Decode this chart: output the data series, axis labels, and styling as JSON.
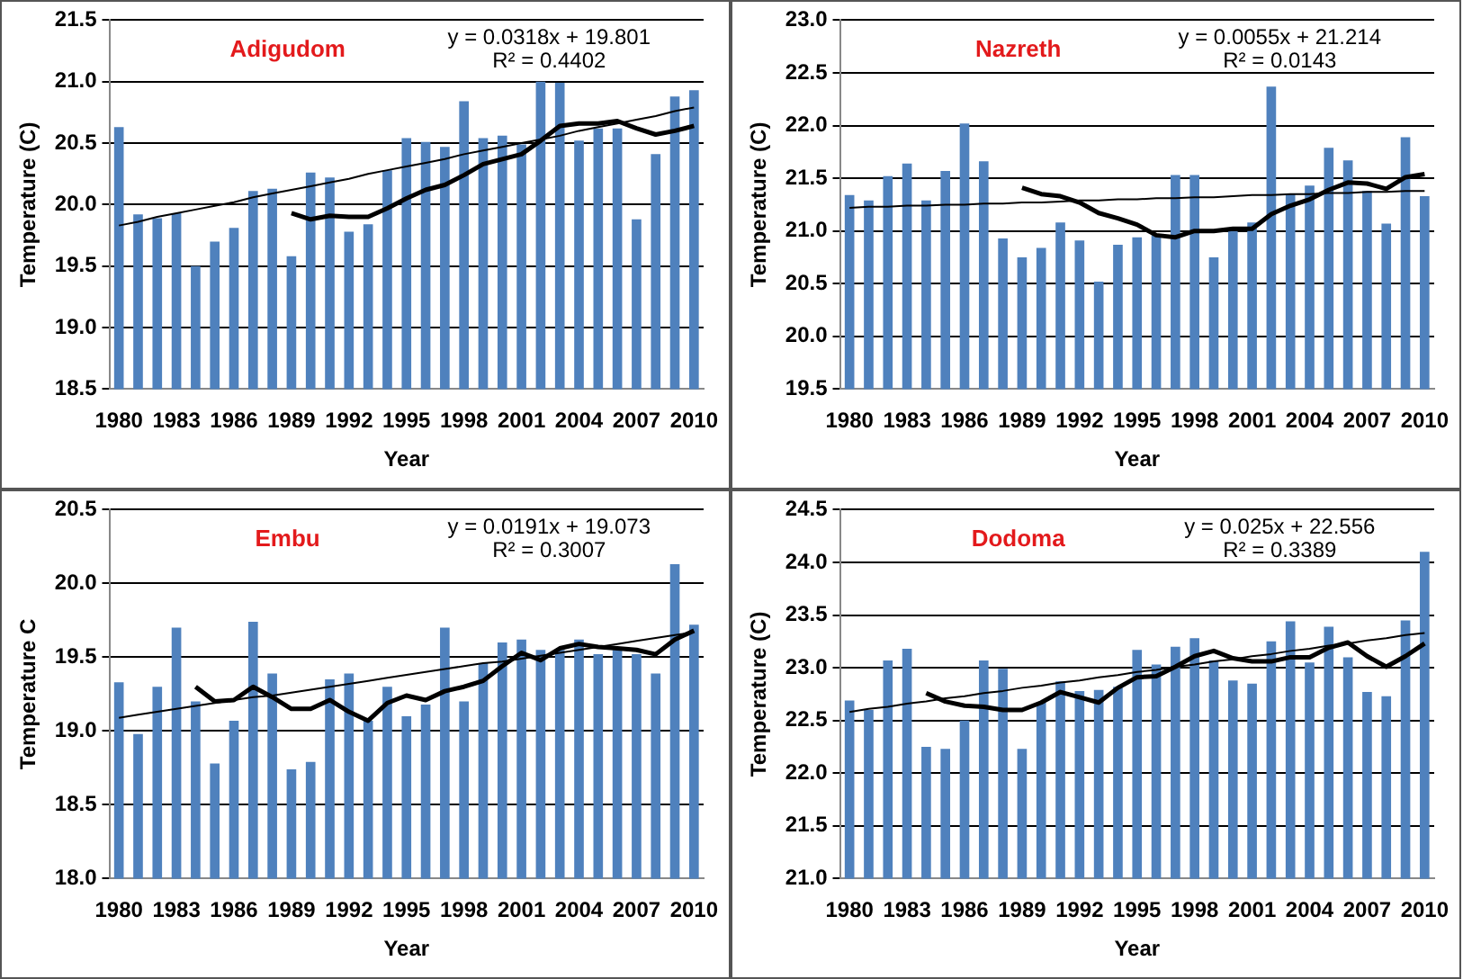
{
  "chart_data": [
    {
      "type": "bar",
      "title": "Adigudom",
      "xlabel": "Year",
      "ylabel": "Temperature (C)",
      "categories": [
        "1980",
        null,
        null,
        "1983",
        null,
        null,
        "1986",
        null,
        null,
        "1989",
        null,
        null,
        "1992",
        null,
        null,
        "1995",
        null,
        null,
        "1998",
        null,
        null,
        "2001",
        null,
        null,
        "2004",
        null,
        null,
        "2007",
        null,
        null,
        "2010"
      ],
      "ylim": [
        18.5,
        21.5
      ],
      "yticks": [
        {
          "value": 18.5,
          "label": "18.5"
        },
        {
          "value": 19,
          "label": "19.0"
        },
        {
          "value": 19.5,
          "label": "19.5"
        },
        {
          "value": 20,
          "label": "20.0"
        },
        {
          "value": 20.5,
          "label": "20.5"
        },
        {
          "value": 21,
          "label": "21.0"
        },
        {
          "value": 21.5,
          "label": "21.5"
        }
      ],
      "grid": "y",
      "legend": false,
      "annotations": [
        "y = 0.0318x + 19.801",
        "R² = 0.4402"
      ],
      "series": [
        {
          "color": "#4f81bd",
          "values": [
            20.63,
            19.92,
            19.89,
            19.93,
            19.5,
            19.7,
            19.81,
            20.11,
            20.13,
            19.58,
            20.26,
            20.22,
            19.78,
            19.84,
            20.28,
            20.54,
            20.51,
            20.47,
            20.84,
            20.54,
            20.56,
            20.49,
            21.0,
            20.99,
            20.52,
            20.62,
            20.62,
            19.88,
            20.41,
            20.88,
            20.93
          ]
        },
        {
          "type": "line",
          "color": "#000000",
          "values": [
            null,
            null,
            null,
            null,
            null,
            null,
            null,
            null,
            null,
            19.93,
            19.88,
            19.91,
            19.9,
            19.9,
            19.97,
            20.05,
            20.12,
            20.16,
            20.24,
            20.33,
            20.37,
            20.41,
            20.52,
            20.64,
            20.66,
            20.66,
            20.68,
            20.62,
            20.57,
            20.6,
            20.64
          ]
        },
        {
          "type": "line",
          "color": "#000000",
          "values": [
            19.83,
            19.86,
            19.9,
            19.93,
            19.96,
            19.99,
            20.02,
            20.06,
            20.09,
            20.12,
            20.15,
            20.18,
            20.21,
            20.25,
            20.28,
            20.31,
            20.34,
            20.37,
            20.41,
            20.44,
            20.47,
            20.5,
            20.53,
            20.56,
            20.6,
            20.63,
            20.66,
            20.69,
            20.72,
            20.76,
            20.79
          ]
        }
      ]
    },
    {
      "type": "bar",
      "title": "Nazreth",
      "xlabel": "Year",
      "ylabel": "Temperature (C)",
      "categories": [
        "1980",
        null,
        null,
        "1983",
        null,
        null,
        "1986",
        null,
        null,
        "1989",
        null,
        null,
        "1992",
        null,
        null,
        "1995",
        null,
        null,
        "1998",
        null,
        null,
        "2001",
        null,
        null,
        "2004",
        null,
        null,
        "2007",
        null,
        null,
        "2010"
      ],
      "ylim": [
        19.5,
        23
      ],
      "yticks": [
        {
          "value": 19.5,
          "label": "19.5"
        },
        {
          "value": 20,
          "label": "20.0"
        },
        {
          "value": 20.5,
          "label": "20.5"
        },
        {
          "value": 21,
          "label": "21.0"
        },
        {
          "value": 21.5,
          "label": "21.5"
        },
        {
          "value": 22,
          "label": "22.0"
        },
        {
          "value": 22.5,
          "label": "22.5"
        },
        {
          "value": 23,
          "label": "23.0"
        }
      ],
      "grid": "y",
      "legend": false,
      "annotations": [
        "y = 0.0055x + 21.214",
        "R² = 0.0143"
      ],
      "series": [
        {
          "color": "#4f81bd",
          "values": [
            21.34,
            21.29,
            21.52,
            21.64,
            21.29,
            21.57,
            22.02,
            21.66,
            20.93,
            20.75,
            20.84,
            21.08,
            20.91,
            20.52,
            20.87,
            20.94,
            20.96,
            21.53,
            21.53,
            20.75,
            21.0,
            21.08,
            22.37,
            21.35,
            21.43,
            21.79,
            21.67,
            21.38,
            21.07,
            21.89,
            21.33
          ]
        },
        {
          "type": "line",
          "color": "#000000",
          "values": [
            null,
            null,
            null,
            null,
            null,
            null,
            null,
            null,
            null,
            21.41,
            21.35,
            21.33,
            21.27,
            21.17,
            21.12,
            21.06,
            20.96,
            20.94,
            21.0,
            21.0,
            21.02,
            21.02,
            21.16,
            21.24,
            21.3,
            21.39,
            21.46,
            21.45,
            21.4,
            21.51,
            21.54
          ]
        },
        {
          "type": "line",
          "color": "#000000",
          "values": [
            21.22,
            21.23,
            21.23,
            21.24,
            21.24,
            21.25,
            21.25,
            21.26,
            21.26,
            21.27,
            21.27,
            21.28,
            21.29,
            21.29,
            21.3,
            21.3,
            21.31,
            21.31,
            21.32,
            21.32,
            21.33,
            21.34,
            21.34,
            21.35,
            21.35,
            21.36,
            21.36,
            21.37,
            21.37,
            21.38,
            21.38
          ]
        }
      ]
    },
    {
      "type": "bar",
      "title": "Embu",
      "xlabel": "Year",
      "ylabel": "Temperature C",
      "categories": [
        "1980",
        null,
        null,
        "1983",
        null,
        null,
        "1986",
        null,
        null,
        "1989",
        null,
        null,
        "1992",
        null,
        null,
        "1995",
        null,
        null,
        "1998",
        null,
        null,
        "2001",
        null,
        null,
        "2004",
        null,
        null,
        "2007",
        null,
        null,
        "2010"
      ],
      "ylim": [
        18,
        20.5
      ],
      "yticks": [
        {
          "value": 18,
          "label": "18.0"
        },
        {
          "value": 18.5,
          "label": "18.5"
        },
        {
          "value": 19,
          "label": "19.0"
        },
        {
          "value": 19.5,
          "label": "19.5"
        },
        {
          "value": 20,
          "label": "20.0"
        },
        {
          "value": 20.5,
          "label": "20.5"
        }
      ],
      "grid": "y",
      "legend": false,
      "annotations": [
        "y = 0.0191x + 19.073",
        "R² = 0.3007"
      ],
      "series": [
        {
          "color": "#4f81bd",
          "values": [
            19.33,
            18.98,
            19.3,
            19.7,
            19.2,
            18.78,
            19.07,
            19.74,
            19.39,
            18.74,
            18.79,
            19.35,
            19.39,
            19.07,
            19.3,
            19.1,
            19.18,
            19.7,
            19.2,
            19.46,
            19.6,
            19.62,
            19.55,
            19.55,
            19.62,
            19.52,
            19.55,
            19.52,
            19.39,
            20.13,
            19.72
          ]
        },
        {
          "type": "line",
          "color": "#000000",
          "values": [
            null,
            null,
            null,
            null,
            19.3,
            19.2,
            19.21,
            19.3,
            19.23,
            19.15,
            19.15,
            19.21,
            19.13,
            19.07,
            19.19,
            19.24,
            19.21,
            19.27,
            19.3,
            19.34,
            19.44,
            19.53,
            19.48,
            19.56,
            19.59,
            19.57,
            19.56,
            19.55,
            19.52,
            19.62,
            19.68
          ]
        },
        {
          "type": "line",
          "color": "#000000",
          "values": [
            19.09,
            19.11,
            19.13,
            19.15,
            19.17,
            19.19,
            19.21,
            19.23,
            19.24,
            19.26,
            19.28,
            19.3,
            19.32,
            19.34,
            19.36,
            19.38,
            19.4,
            19.42,
            19.44,
            19.46,
            19.47,
            19.49,
            19.51,
            19.53,
            19.55,
            19.57,
            19.59,
            19.61,
            19.63,
            19.65,
            19.67
          ]
        }
      ]
    },
    {
      "type": "bar",
      "title": "Dodoma",
      "xlabel": "Year",
      "ylabel": "Temperature (C)",
      "categories": [
        "1980",
        null,
        null,
        "1983",
        null,
        null,
        "1986",
        null,
        null,
        "1989",
        null,
        null,
        "1992",
        null,
        null,
        "1995",
        null,
        null,
        "1998",
        null,
        null,
        "2001",
        null,
        null,
        "2004",
        null,
        null,
        "2007",
        null,
        null,
        "2010"
      ],
      "ylim": [
        21,
        24.5
      ],
      "yticks": [
        {
          "value": 21,
          "label": "21.0"
        },
        {
          "value": 21.5,
          "label": "21.5"
        },
        {
          "value": 22,
          "label": "22.0"
        },
        {
          "value": 22.5,
          "label": "22.5"
        },
        {
          "value": 23,
          "label": "23.0"
        },
        {
          "value": 23.5,
          "label": "23.5"
        },
        {
          "value": 24,
          "label": "24.0"
        },
        {
          "value": 24.5,
          "label": "24.5"
        }
      ],
      "grid": "y",
      "legend": false,
      "annotations": [
        "y = 0.025x + 22.556",
        "R² = 0.3389"
      ],
      "series": [
        {
          "color": "#4f81bd",
          "values": [
            22.69,
            22.6,
            23.07,
            23.18,
            22.25,
            22.23,
            22.5,
            23.07,
            22.99,
            22.23,
            22.67,
            22.87,
            22.78,
            22.79,
            22.82,
            23.17,
            23.03,
            23.2,
            23.28,
            23.07,
            22.88,
            22.85,
            23.25,
            23.44,
            23.05,
            23.39,
            23.1,
            22.77,
            22.73,
            23.45,
            24.1
          ]
        },
        {
          "type": "line",
          "color": "#000000",
          "values": [
            null,
            null,
            null,
            null,
            22.76,
            22.68,
            22.64,
            22.63,
            22.6,
            22.6,
            22.67,
            22.77,
            22.72,
            22.67,
            22.81,
            22.91,
            22.92,
            23.01,
            23.11,
            23.16,
            23.09,
            23.06,
            23.06,
            23.1,
            23.1,
            23.19,
            23.24,
            23.11,
            23.01,
            23.11,
            23.23
          ]
        },
        {
          "type": "line",
          "color": "#000000",
          "values": [
            22.58,
            22.61,
            22.63,
            22.66,
            22.68,
            22.71,
            22.73,
            22.76,
            22.78,
            22.81,
            22.83,
            22.86,
            22.88,
            22.91,
            22.93,
            22.96,
            22.98,
            23.01,
            23.03,
            23.06,
            23.08,
            23.11,
            23.13,
            23.16,
            23.18,
            23.21,
            23.23,
            23.26,
            23.28,
            23.31,
            23.33
          ]
        }
      ]
    }
  ]
}
